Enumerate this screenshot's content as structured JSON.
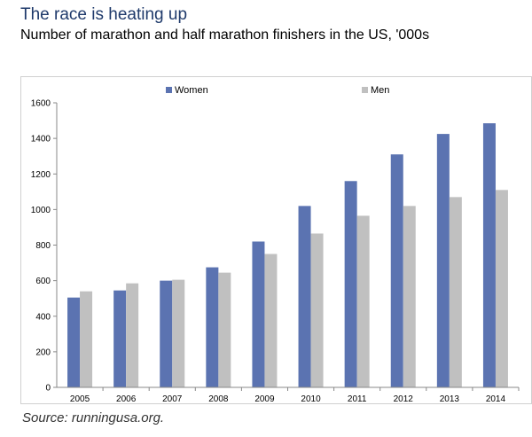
{
  "header": {
    "title": "The race is heating up",
    "subtitle": "Number of marathon and half marathon finishers in the US, '000s"
  },
  "footer": {
    "source": "Source:  runningusa.org."
  },
  "colors": {
    "women": "#5b73b1",
    "men": "#c0c0c0",
    "axis": "#888888"
  },
  "chart_data": {
    "type": "bar",
    "title": "The race is heating up",
    "subtitle": "Number of marathon and half marathon finishers in the US, '000s",
    "xlabel": "",
    "ylabel": "",
    "categories": [
      "2005",
      "2006",
      "2007",
      "2008",
      "2009",
      "2010",
      "2011",
      "2012",
      "2013",
      "2014"
    ],
    "series": [
      {
        "name": "Women",
        "values": [
          505,
          545,
          600,
          675,
          820,
          1020,
          1160,
          1310,
          1425,
          1485
        ]
      },
      {
        "name": "Men",
        "values": [
          540,
          585,
          605,
          645,
          750,
          865,
          965,
          1020,
          1070,
          1110
        ]
      }
    ],
    "ylim": [
      0,
      1600
    ],
    "yticks": [
      0,
      200,
      400,
      600,
      800,
      1000,
      1200,
      1400,
      1600
    ],
    "grid": false,
    "legend": "top"
  }
}
